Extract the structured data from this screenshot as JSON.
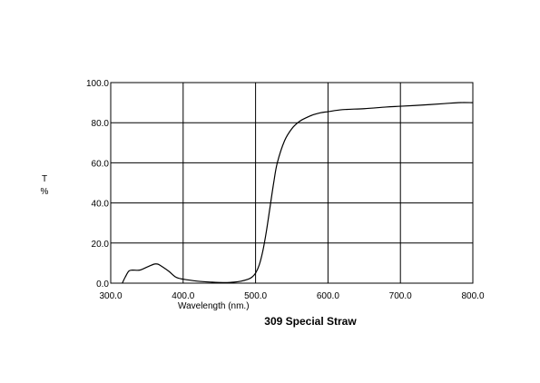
{
  "chart_data": {
    "type": "line",
    "title": "309 Special Straw",
    "xlabel": "Wavelength (nm.)",
    "ylabel_lines": [
      "T",
      "%"
    ],
    "xlim": [
      300,
      800
    ],
    "ylim": [
      0,
      100
    ],
    "x_ticks": [
      300,
      400,
      500,
      600,
      700,
      800
    ],
    "y_ticks": [
      0,
      20,
      40,
      60,
      80,
      100
    ],
    "x_tick_labels": [
      "300.0",
      "400.0",
      "500.0",
      "600.0",
      "700.0",
      "800.0"
    ],
    "y_tick_labels": [
      "0.0",
      "20.0",
      "40.0",
      "60.0",
      "80.0",
      "100.0"
    ],
    "grid": true,
    "series": [
      {
        "x": [
          316,
          320,
          325,
          330,
          340,
          350,
          360,
          365,
          370,
          380,
          390,
          400,
          420,
          440,
          455,
          470,
          480,
          490,
          495,
          500,
          505,
          510,
          515,
          520,
          525,
          530,
          540,
          550,
          560,
          570,
          580,
          590,
          600,
          620,
          650,
          680,
          700,
          730,
          760,
          780,
          800
        ],
        "y": [
          0,
          3,
          6,
          6.5,
          6.5,
          8,
          9.5,
          9.5,
          8.5,
          6,
          3,
          2,
          1,
          0.5,
          0.3,
          0.5,
          1,
          2,
          3,
          5,
          9,
          16,
          26,
          38,
          50,
          60,
          71,
          77,
          80.5,
          82.5,
          84,
          85,
          85.5,
          86.5,
          87,
          87.8,
          88.2,
          88.8,
          89.5,
          90,
          90
        ]
      }
    ]
  }
}
